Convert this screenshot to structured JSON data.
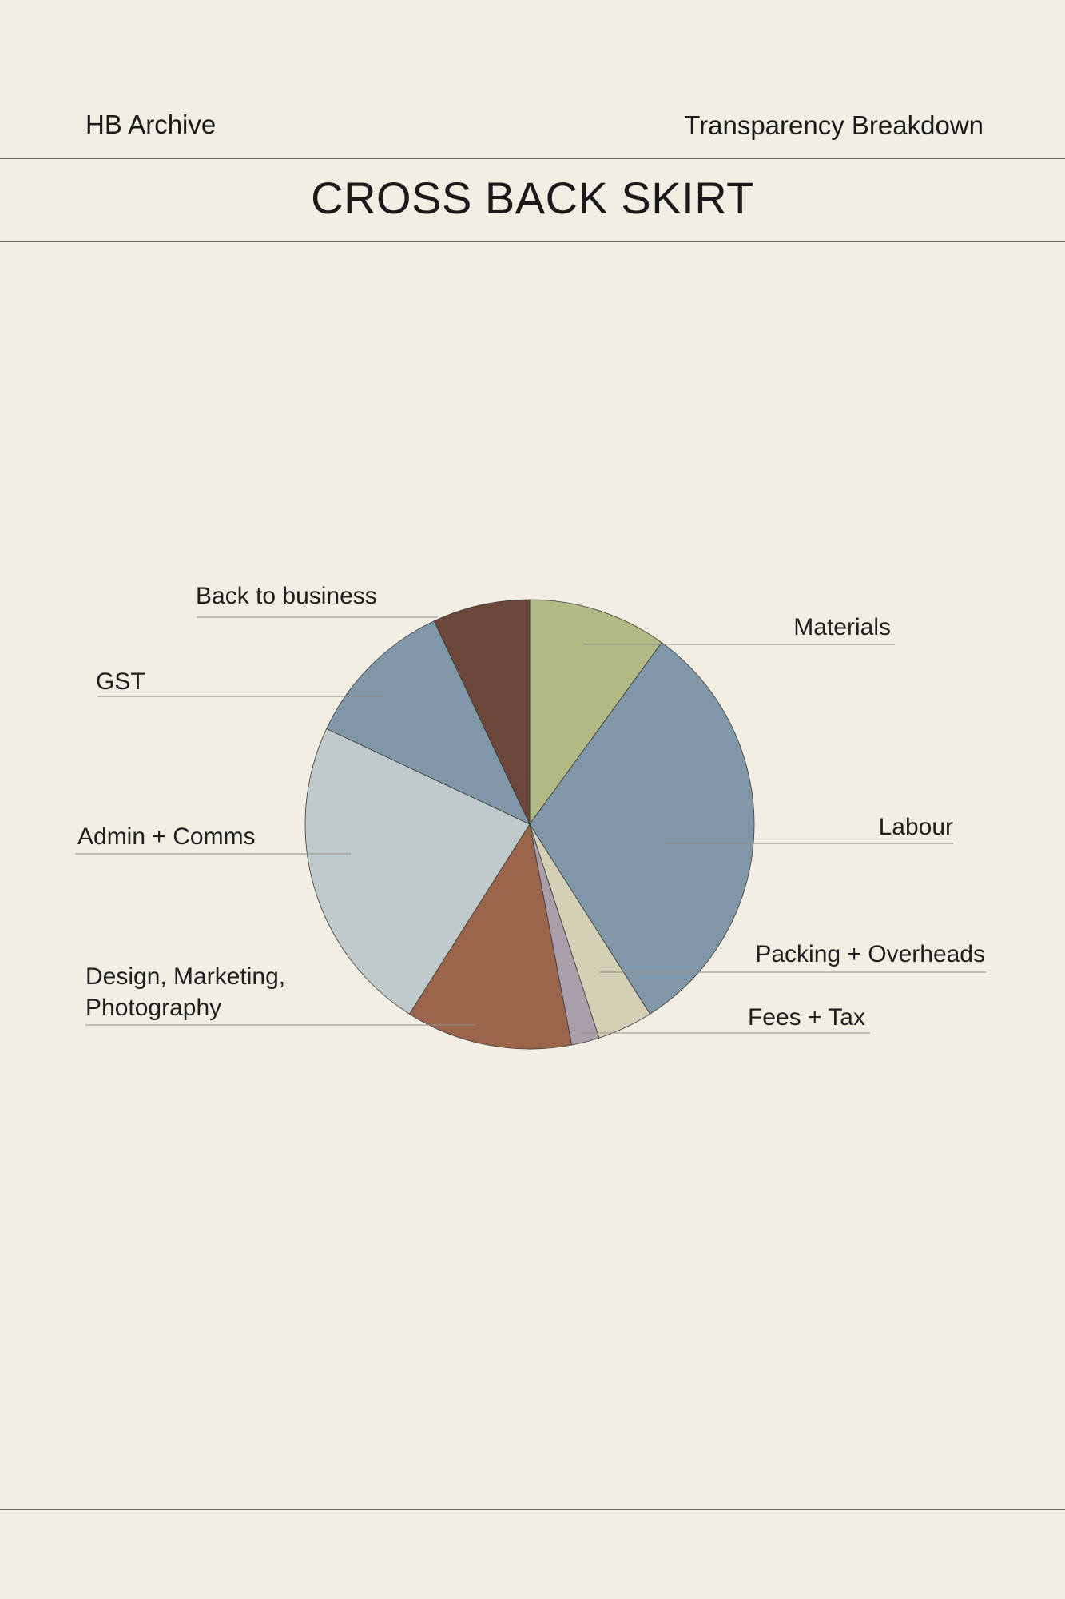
{
  "header": {
    "left": "HB Archive",
    "right": "Transparency Breakdown"
  },
  "title": "CROSS BACK SKIRT",
  "chart_data": {
    "type": "pie",
    "title": "CROSS BACK SKIRT",
    "start": "top, clockwise",
    "unit": "percent (estimated)",
    "slices": [
      {
        "label": "Materials",
        "value": 10,
        "color": "#b3b985"
      },
      {
        "label": "Labour",
        "value": 31,
        "color": "#7f97a6"
      },
      {
        "label": "Packing + Overheads",
        "value": 4,
        "color": "#d4d0b6"
      },
      {
        "label": "Fees + Tax",
        "value": 2,
        "color": "#a99ea9"
      },
      {
        "label": "Design, Marketing, Photography",
        "label_lines": [
          "Design, Marketing,",
          "Photography"
        ],
        "value": 12,
        "color": "#9a654a"
      },
      {
        "label": "Admin + Comms",
        "value": 23,
        "color": "#c1cacb"
      },
      {
        "label": "GST",
        "value": 11,
        "color": "#7f97a6"
      },
      {
        "label": "Back to business",
        "value": 7,
        "color": "#6b463a"
      }
    ]
  }
}
